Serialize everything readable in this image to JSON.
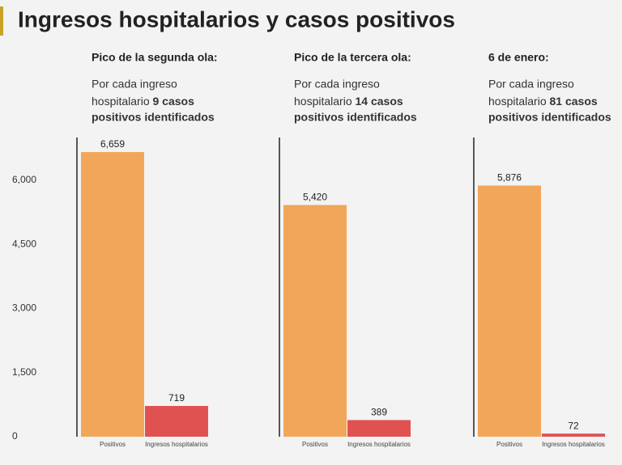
{
  "title": "Ingresos hospitalarios y casos positivos",
  "chart_data": [
    {
      "type": "bar",
      "heading": "Pico de la segunda ola:",
      "note": "Por cada ingreso",
      "note_line2": "hospitalario",
      "note_bold": "9 casos",
      "note_bold_line3": "positivos identificados",
      "categories": [
        "Positivos",
        "Ingresos hospitalarios"
      ],
      "values": [
        6659,
        719
      ],
      "value_labels": [
        "6,659",
        "719"
      ],
      "colors": [
        "#f2a65a",
        "#e05252"
      ],
      "ylim": [
        0,
        7000
      ],
      "yticks": [
        0,
        {
          "value": 1500,
          "label": "1,500"
        },
        {
          "value": 3000,
          "label": "3,000"
        },
        {
          "value": 4500,
          "label": "4,500"
        },
        {
          "value": 6000,
          "label": "6,000"
        }
      ]
    },
    {
      "type": "bar",
      "heading": "Pico de la tercera ola:",
      "note": "Por cada ingreso",
      "note_line2": "hospitalario",
      "note_bold": "14 casos",
      "note_bold_line3": "positivos identificados",
      "categories": [
        "Positivos",
        "Ingresos hospitalarios"
      ],
      "values": [
        5420,
        389
      ],
      "value_labels": [
        "5,420",
        "389"
      ],
      "colors": [
        "#f2a65a",
        "#e05252"
      ],
      "ylim": [
        0,
        7000
      ]
    },
    {
      "type": "bar",
      "heading": "6 de enero:",
      "note": "Por cada ingreso",
      "note_line2": "hospitalario",
      "note_bold": "81 casos",
      "note_bold_line3": "positivos identificados",
      "categories": [
        "Positivos",
        "Ingresos hospitalarios"
      ],
      "values": [
        5876,
        72
      ],
      "value_labels": [
        "5,876",
        "72"
      ],
      "colors": [
        "#f2a65a",
        "#e05252"
      ],
      "ylim": [
        0,
        7000
      ]
    }
  ]
}
